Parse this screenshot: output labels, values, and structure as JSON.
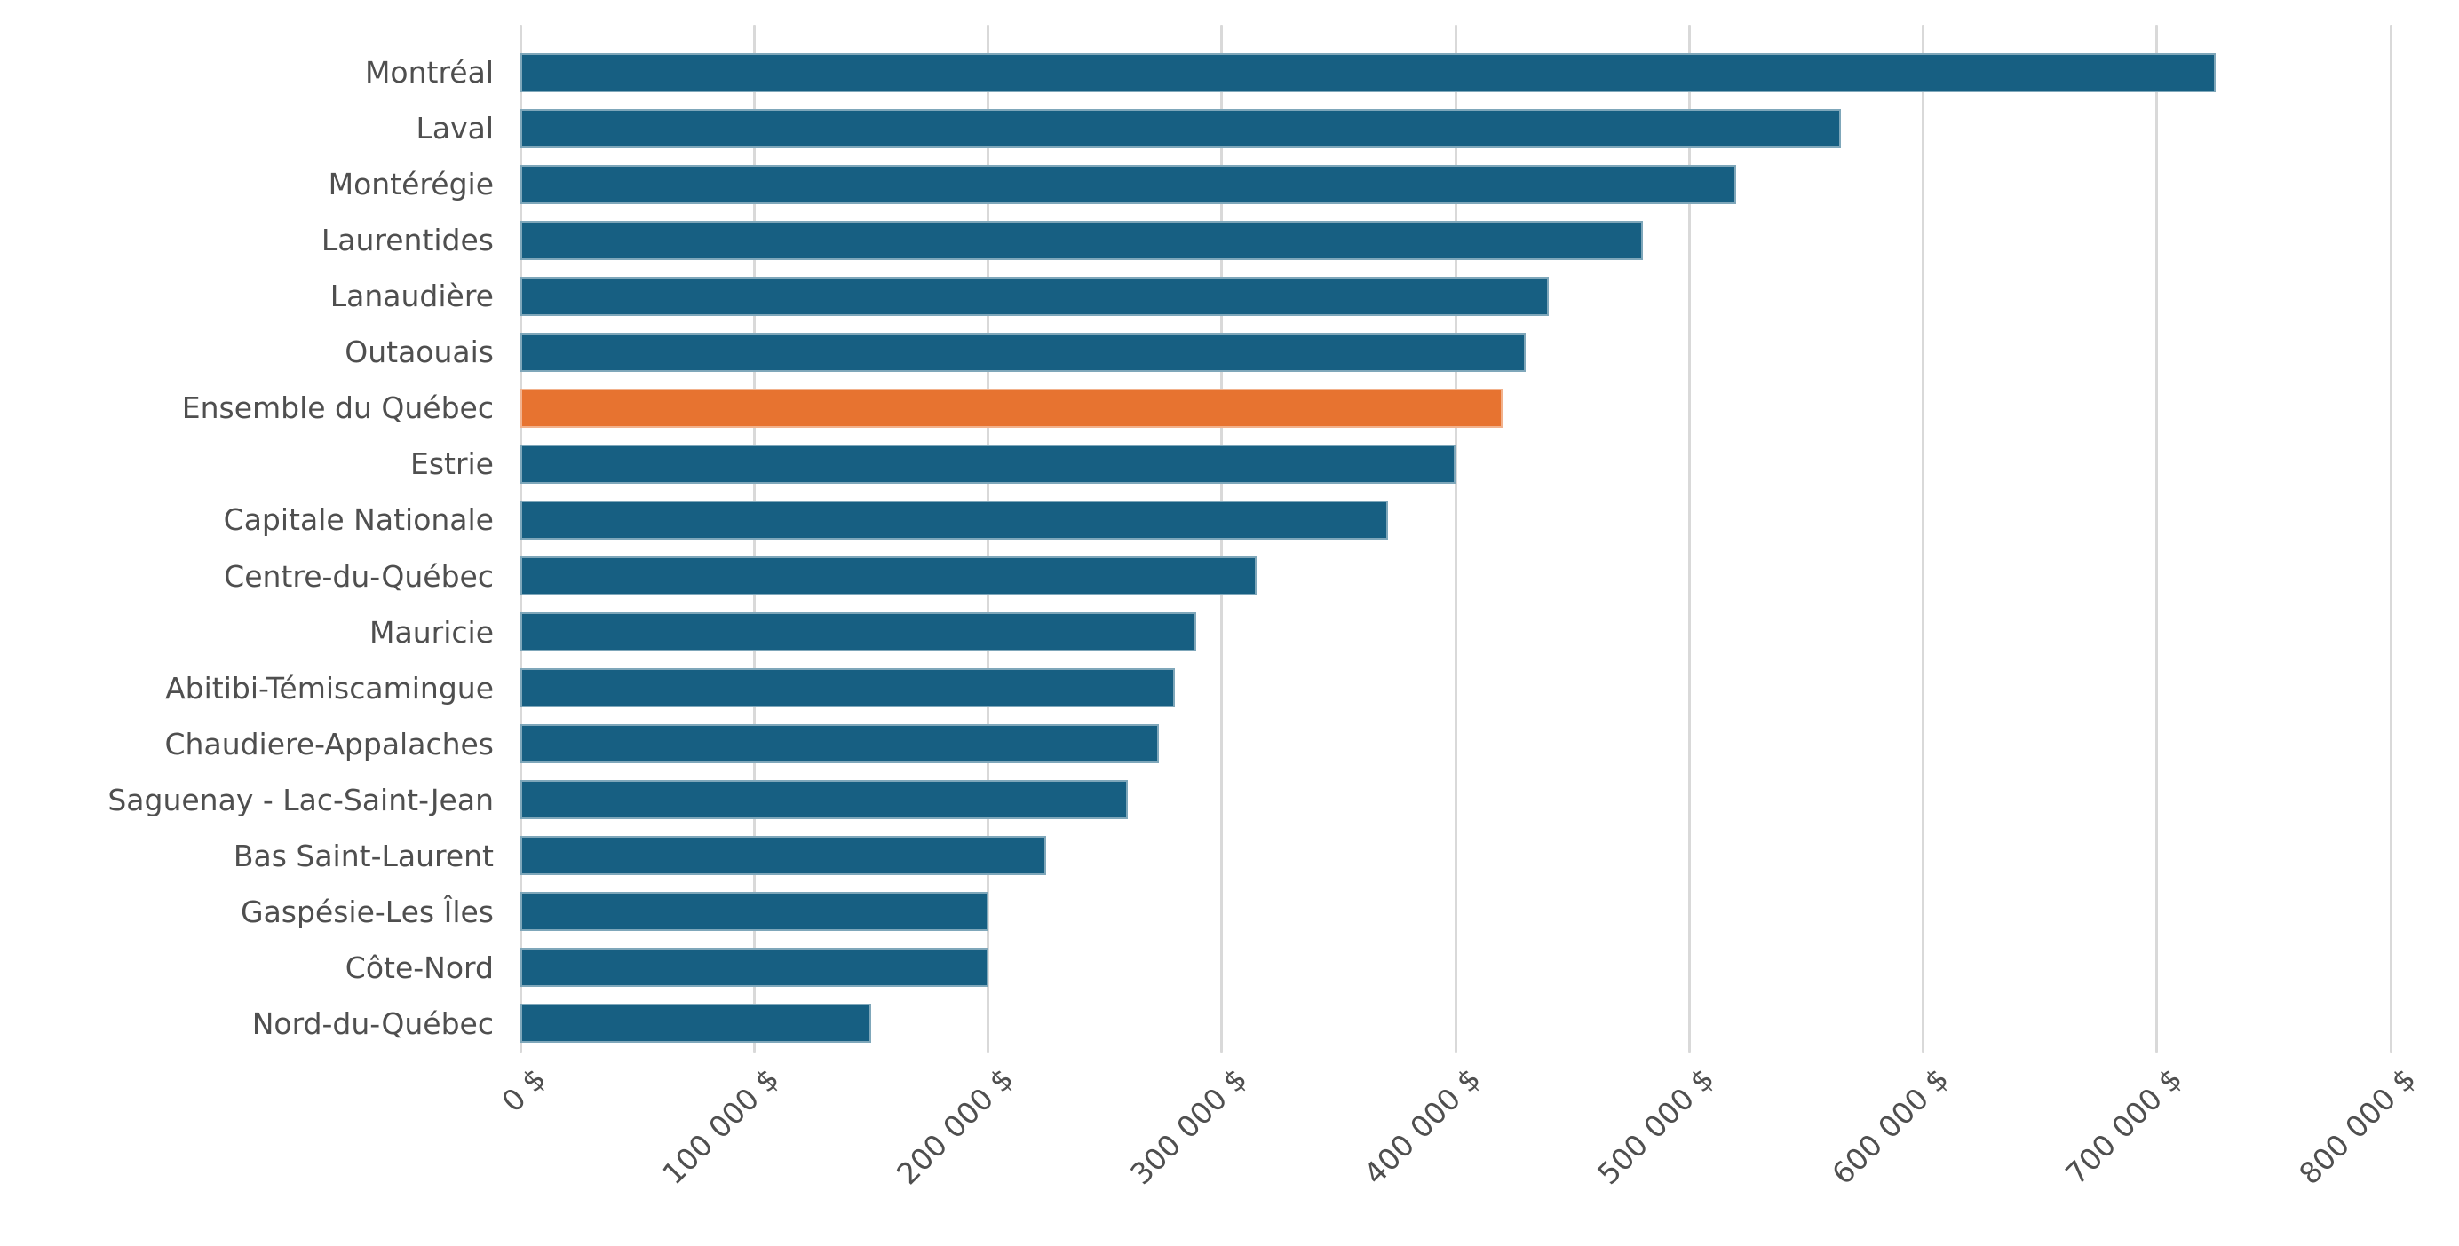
{
  "chart_data": {
    "type": "bar",
    "orientation": "horizontal",
    "title": "",
    "xlabel": "",
    "ylabel": "",
    "grid": "vertical",
    "legend": false,
    "xlim": [
      0,
      800000
    ],
    "x_tick_interval": 100000,
    "x_tick_values": [
      0,
      100000,
      200000,
      300000,
      400000,
      500000,
      600000,
      700000,
      800000
    ],
    "x_tick_labels": [
      "0 $",
      "100 000 $",
      "200 000 $",
      "300 000 $",
      "400 000 $",
      "500 000 $",
      "600 000 $",
      "700 000 $",
      "800 000 $"
    ],
    "categories": [
      "Montréal",
      "Laval",
      "Montérégie",
      "Laurentides",
      "Lanaudière",
      "Outaouais",
      "Ensemble du Québec",
      "Estrie",
      "Capitale Nationale",
      "Centre-du-Québec",
      "Mauricie",
      "Abitibi-Témiscamingue",
      "Chaudiere-Appalaches",
      "Saguenay - Lac-Saint-Jean",
      "Bas Saint-Laurent",
      "Gaspésie-Les Îles",
      "Côte-Nord",
      "Nord-du-Québec"
    ],
    "values": [
      725000,
      565000,
      520000,
      480000,
      440000,
      430000,
      420000,
      400000,
      371000,
      315000,
      289000,
      280000,
      273000,
      260000,
      225000,
      200000,
      200000,
      150000
    ],
    "highlight_category": "Ensemble du Québec",
    "highlight_index": 6
  },
  "colors": {
    "bar": "#175f82",
    "highlight": "#e77330",
    "gridline": "#d9d9d9",
    "text": "#4f4f4f",
    "background": "#ffffff"
  }
}
